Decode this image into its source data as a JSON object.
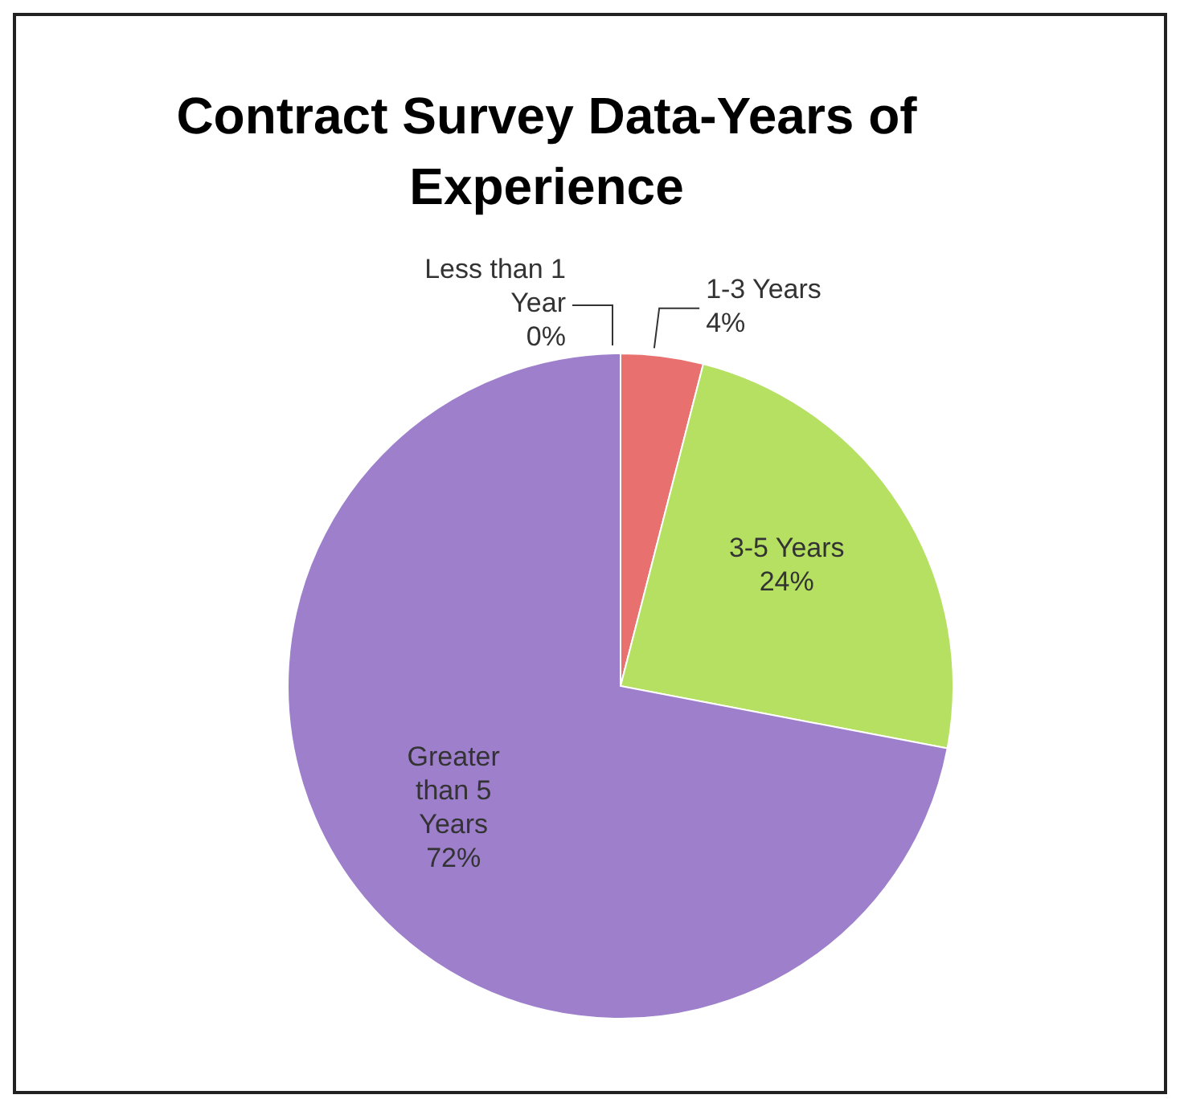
{
  "chart_data": {
    "type": "pie",
    "title": "Contract Survey Data-Years of Experience",
    "categories": [
      "Less than 1 Year",
      "1-3 Years",
      "3-5 Years",
      "Greater than 5 Years"
    ],
    "values": [
      0,
      4,
      24,
      72
    ],
    "colors": [
      "#7ea6e0",
      "#e8706e",
      "#b5e061",
      "#9d7fcb"
    ],
    "value_labels": [
      "0%",
      "4%",
      "24%",
      "72%"
    ],
    "legend": false
  }
}
